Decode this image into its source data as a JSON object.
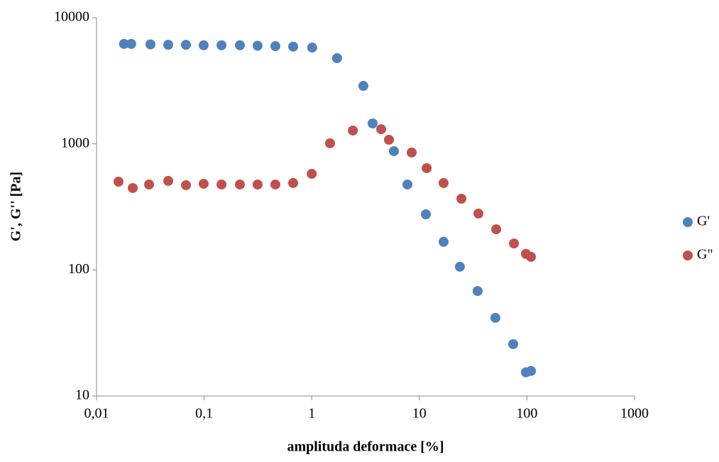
{
  "chart_data": {
    "type": "scatter",
    "x_label": "amplituda deformace [%]",
    "y_label": "G', G'' [Pa]",
    "xscale": "log",
    "yscale": "log",
    "xlim": [
      0.01,
      1000
    ],
    "ylim": [
      10,
      10000
    ],
    "xticks": [
      {
        "value": 0.01,
        "label": "0,01"
      },
      {
        "value": 0.1,
        "label": "0,1"
      },
      1,
      10,
      100,
      1000
    ],
    "yticks": [
      10,
      100,
      1000,
      10000
    ],
    "legend": "right",
    "series": [
      {
        "name": "G'",
        "color": "#4f81bd",
        "x": [
          0.018,
          0.021,
          0.0317,
          0.0464,
          0.0678,
          0.099,
          0.145,
          0.215,
          0.314,
          0.459,
          0.672,
          1.01,
          1.72,
          3.02,
          3.68,
          5.8,
          7.75,
          11.5,
          16.8,
          23.8,
          34.8,
          50.9,
          74.5,
          97.9,
          109
        ],
        "values": [
          6200,
          6200,
          6150,
          6100,
          6100,
          6050,
          6050,
          6050,
          6000,
          5950,
          5900,
          5800,
          4780,
          2880,
          1450,
          875,
          476,
          276,
          167,
          106,
          68,
          41.7,
          25.8,
          15.4,
          15.8
        ]
      },
      {
        "name": "G\"",
        "color": "#c0504d",
        "x": [
          0.016,
          0.0217,
          0.0308,
          0.0464,
          0.0678,
          0.099,
          0.145,
          0.215,
          0.314,
          0.459,
          0.672,
          1.0,
          1.48,
          2.41,
          4.42,
          5.22,
          8.49,
          11.7,
          16.8,
          24.6,
          35.4,
          51.8,
          75.7,
          97.9,
          109
        ],
        "values": [
          501,
          446,
          476,
          508,
          470,
          482,
          476,
          476,
          476,
          476,
          489,
          578,
          1010,
          1274,
          1306,
          1077,
          853,
          641,
          489,
          367,
          280,
          210,
          162,
          134,
          127
        ]
      }
    ]
  }
}
